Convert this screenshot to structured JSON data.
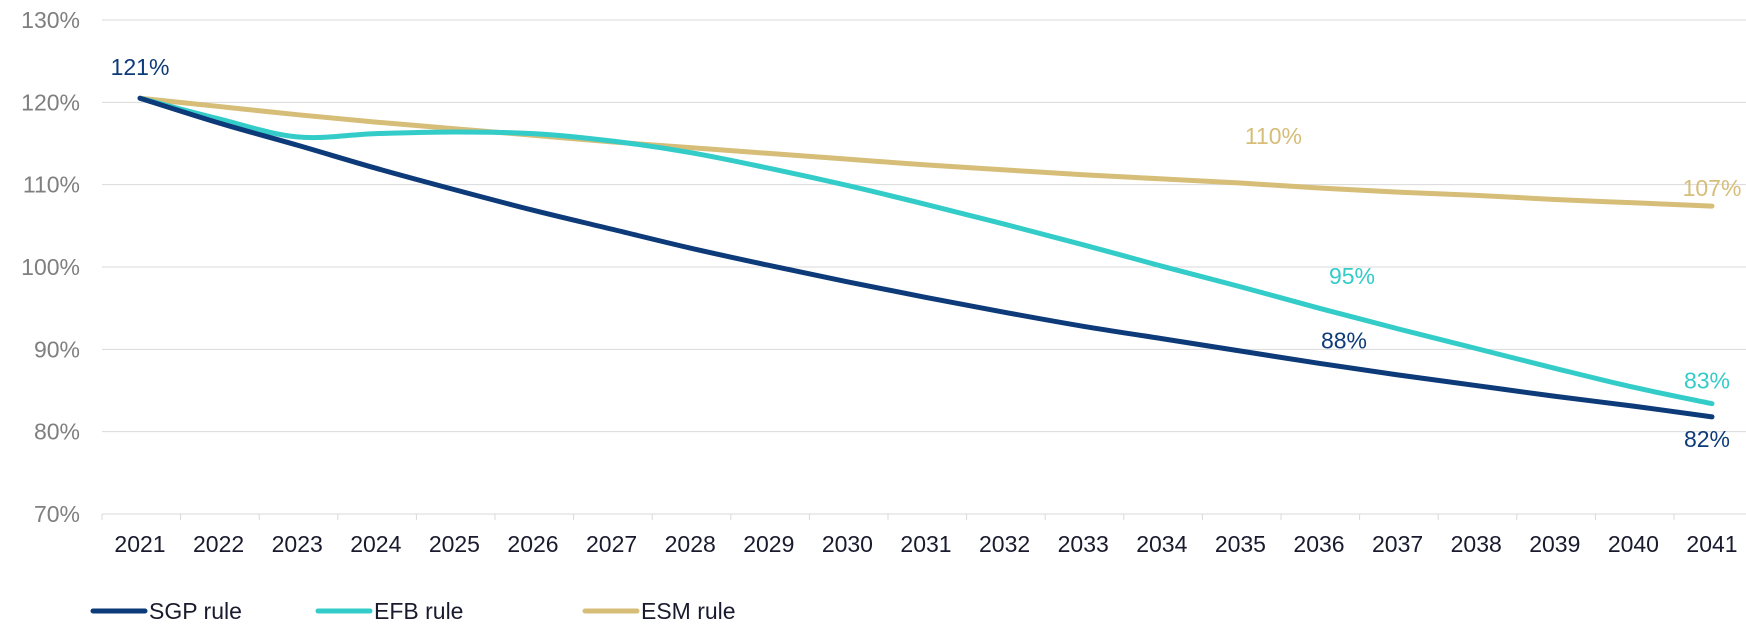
{
  "chart_data": {
    "type": "line",
    "title": "",
    "xlabel": "",
    "ylabel": "",
    "x": [
      "2021",
      "2022",
      "2023",
      "2024",
      "2025",
      "2026",
      "2027",
      "2028",
      "2029",
      "2030",
      "2031",
      "2032",
      "2033",
      "2034",
      "2035",
      "2036",
      "2037",
      "2038",
      "2039",
      "2040",
      "2041"
    ],
    "ylim": [
      70,
      130
    ],
    "yticks": [
      70,
      80,
      90,
      100,
      110,
      120,
      130
    ],
    "ytick_labels": [
      "70%",
      "80%",
      "90%",
      "100%",
      "110%",
      "120%",
      "130%"
    ],
    "grid": "horizontal",
    "legend_position": "bottom-left",
    "series": [
      {
        "name": "SGP rule",
        "color": "#0d3a78",
        "values": [
          120.5,
          117.5,
          114.8,
          112.0,
          109.4,
          106.9,
          104.6,
          102.3,
          100.2,
          98.2,
          96.3,
          94.5,
          92.8,
          91.3,
          89.8,
          88.3,
          86.9,
          85.6,
          84.3,
          83.1,
          81.8
        ]
      },
      {
        "name": "EFB rule",
        "color": "#33ccc8",
        "values": [
          120.5,
          118.0,
          115.8,
          116.2,
          116.4,
          116.2,
          115.3,
          113.9,
          112.0,
          109.9,
          107.6,
          105.2,
          102.7,
          100.1,
          97.6,
          95.0,
          92.5,
          90.1,
          87.7,
          85.4,
          83.4
        ]
      },
      {
        "name": "ESM rule",
        "color": "#d6bd78",
        "values": [
          120.5,
          119.5,
          118.5,
          117.6,
          116.8,
          116.0,
          115.2,
          114.5,
          113.8,
          113.1,
          112.4,
          111.8,
          111.2,
          110.7,
          110.2,
          109.6,
          109.1,
          108.7,
          108.2,
          107.8,
          107.4
        ]
      }
    ],
    "annotations": [
      {
        "text": "121%",
        "series": "SGP rule",
        "x": "2021"
      },
      {
        "text": "110%",
        "series": "ESM rule",
        "x": "2035"
      },
      {
        "text": "107%",
        "series": "ESM rule",
        "x": "2041"
      },
      {
        "text": "95%",
        "series": "EFB rule",
        "x": "2036"
      },
      {
        "text": "83%",
        "series": "EFB rule",
        "x": "2041"
      },
      {
        "text": "88%",
        "series": "SGP rule",
        "x": "2036"
      },
      {
        "text": "82%",
        "series": "SGP rule",
        "x": "2041"
      }
    ]
  }
}
